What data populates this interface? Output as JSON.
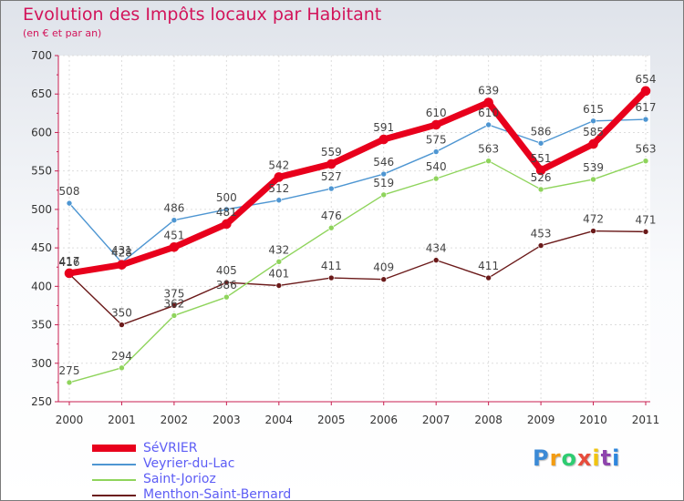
{
  "colors": {
    "sevrier": "#e8001c",
    "veyrier": "#4e96d2",
    "jorioz": "#8fd45c",
    "menthon": "#6b1a1a",
    "title": "#d2145a",
    "legend_text": "#5d5df5"
  },
  "chart_data": {
    "type": "line",
    "title": "Evolution des Impôts locaux par Habitant",
    "subtitle": "(en € et par an)",
    "xlabel": "",
    "ylabel": "",
    "ylim": [
      250,
      700
    ],
    "yticks": [
      250,
      300,
      350,
      400,
      450,
      500,
      550,
      600,
      650,
      700
    ],
    "categories": [
      "2000",
      "2001",
      "2002",
      "2003",
      "2004",
      "2005",
      "2006",
      "2007",
      "2008",
      "2009",
      "2010",
      "2011"
    ],
    "series": [
      {
        "name": "Menthon-Saint-Bernard",
        "key": "menthon",
        "values": [
          416,
          350,
          375,
          405,
          401,
          411,
          409,
          434,
          411,
          453,
          472,
          471
        ]
      },
      {
        "name": "Saint-Jorioz",
        "key": "jorioz",
        "values": [
          275,
          294,
          362,
          386,
          432,
          476,
          519,
          540,
          563,
          526,
          539,
          563
        ]
      },
      {
        "name": "Veyrier-du-Lac",
        "key": "veyrier",
        "values": [
          508,
          431,
          486,
          500,
          512,
          527,
          546,
          575,
          610,
          586,
          615,
          617
        ]
      },
      {
        "name": "SéVRIER",
        "key": "sevrier",
        "values": [
          417,
          428,
          451,
          481,
          542,
          559,
          591,
          610,
          639,
          551,
          585,
          654
        ]
      }
    ],
    "legend": [
      "SéVRIER",
      "Veyrier-du-Lac",
      "Saint-Jorioz",
      "Menthon-Saint-Bernard"
    ]
  },
  "logo": {
    "letters": [
      "P",
      "r",
      "o",
      "x",
      "i",
      "t",
      "i"
    ],
    "colors": [
      "#3c8ad6",
      "#f39c12",
      "#2ecc71",
      "#e74c3c",
      "#f1c40f",
      "#8e44ad",
      "#2e86de"
    ]
  }
}
